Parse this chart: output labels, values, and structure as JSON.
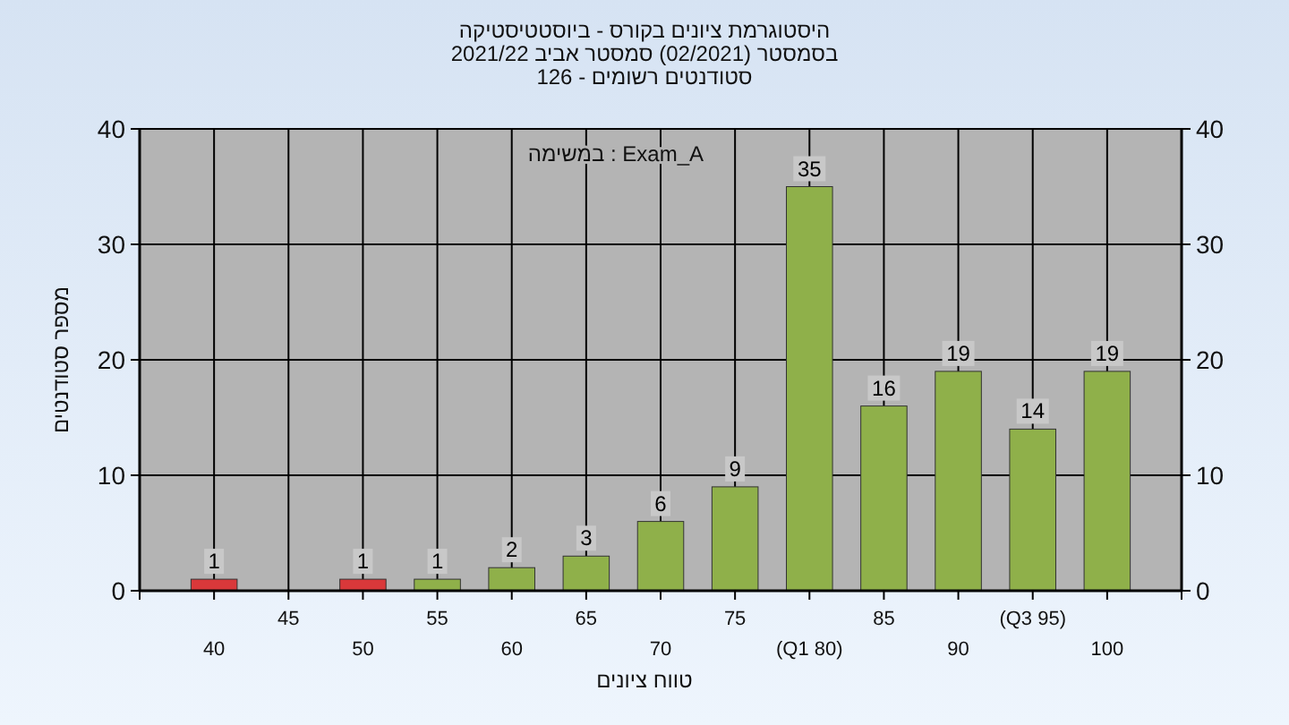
{
  "chart_data": {
    "type": "bar",
    "title": "היסטוגרמת ציונים בקורס - ביוסטטיסטיקה",
    "subtitle": "בסמסטר (02/2021) סמסטר אביב 2021/22",
    "annotations": [
      "סטודנטים רשומים - 126",
      "Exam_A : במשימה"
    ],
    "xlabel": "טווח ציונים",
    "ylabel": "מספר סטודנטים",
    "categories": [
      "40",
      "45",
      "50",
      "55",
      "60",
      "65",
      "70",
      "75",
      "(Q1 80)",
      "85",
      "90",
      "(Q3 95)",
      "100"
    ],
    "series": [
      {
        "colors": [
          "#d9383a",
          null,
          "#d9383a",
          "#8fb04a",
          "#8fb04a",
          "#8fb04a",
          "#8fb04a",
          "#8fb04a",
          "#8fb04a",
          "#8fb04a",
          "#8fb04a",
          "#8fb04a",
          "#8fb04a"
        ],
        "values": [
          1,
          null,
          1,
          1,
          2,
          3,
          6,
          9,
          35,
          16,
          19,
          14,
          19
        ]
      }
    ],
    "data_labels": true,
    "ylim": [
      0,
      40
    ],
    "yticks": [
      0,
      10,
      20,
      30,
      40
    ],
    "y2lim": [
      0,
      40
    ],
    "y2ticks": [
      0,
      10,
      20,
      30,
      40
    ],
    "grid": true
  }
}
